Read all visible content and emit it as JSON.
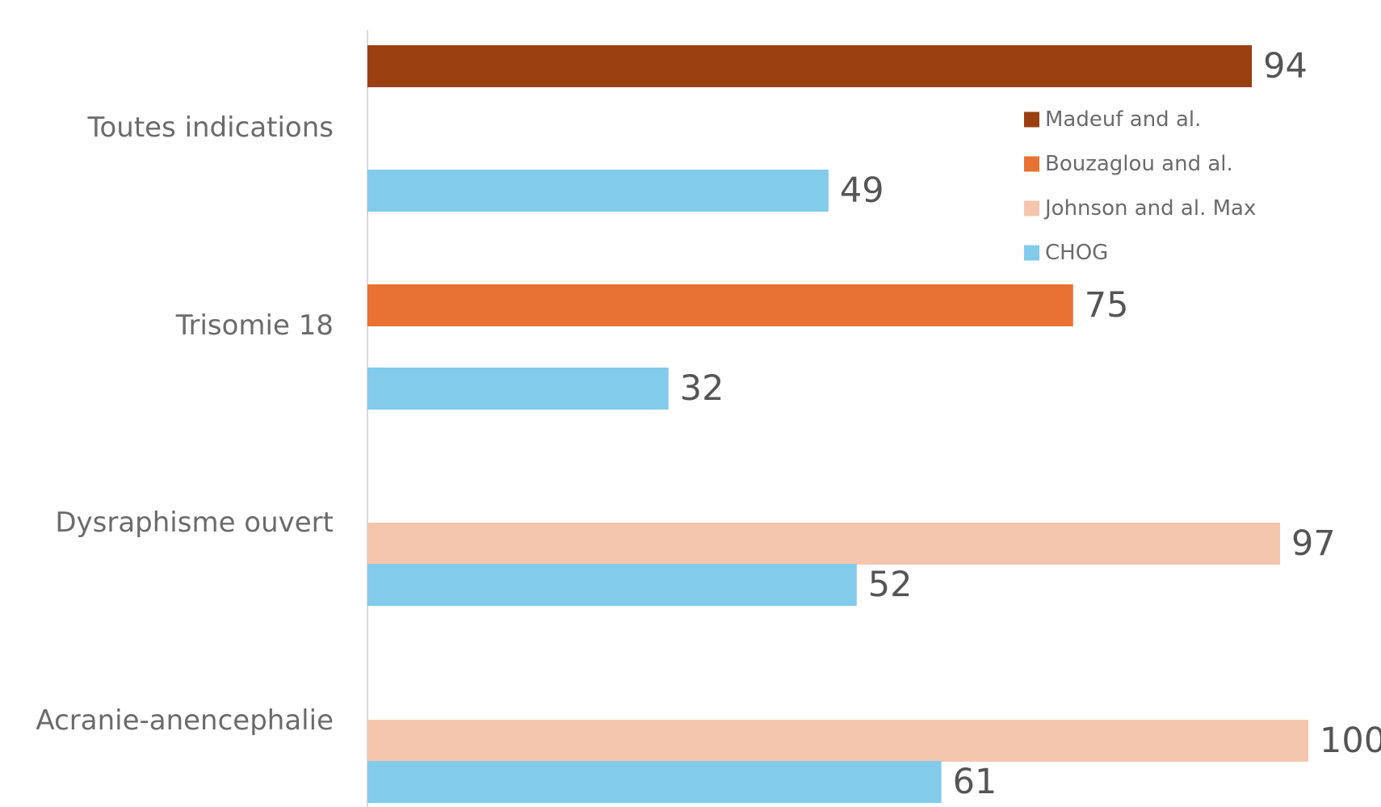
{
  "chart_data": {
    "type": "bar",
    "orientation": "horizontal",
    "categories": [
      "Toutes indications",
      "Trisomie 18",
      "Dysraphisme ouvert",
      "Acranie-anencephalie"
    ],
    "series": [
      {
        "name": "Madeuf and al.",
        "color": "#9a3f10",
        "values": [
          94,
          null,
          null,
          null
        ]
      },
      {
        "name": "Bouzaglou and al.",
        "color": "#e87233",
        "values": [
          null,
          75,
          null,
          null
        ]
      },
      {
        "name": "Johnson and al. Max",
        "color": "#f5c6ae",
        "values": [
          null,
          null,
          97,
          100
        ]
      },
      {
        "name": "CHOG",
        "color": "#82cbea",
        "values": [
          49,
          32,
          52,
          61
        ]
      }
    ],
    "xlim": [
      0,
      100
    ],
    "grid": false,
    "legend": "top-right"
  }
}
